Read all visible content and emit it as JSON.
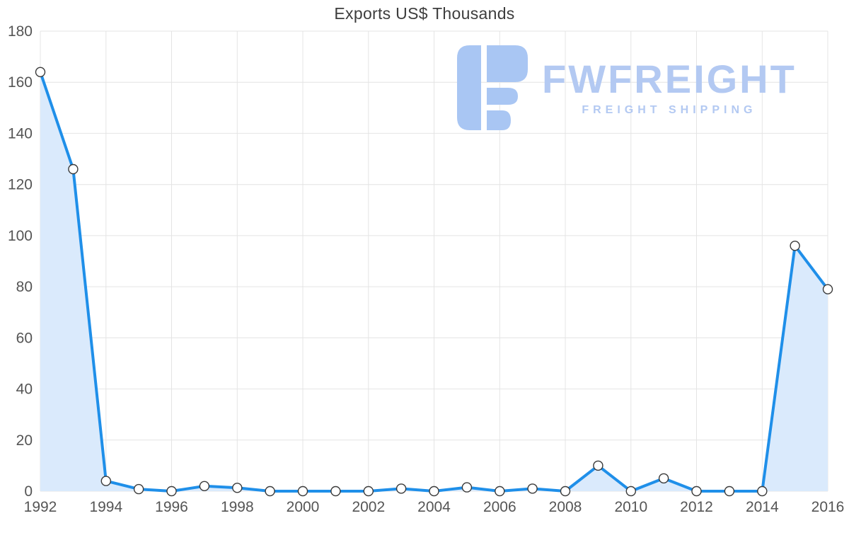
{
  "title": "Exports US$ Thousands",
  "watermark": {
    "brand": "FWFREIGHT",
    "tagline": "FREIGHT SHIPPING",
    "color": "#b3c9f2",
    "logo_color": "#a9c6f3"
  },
  "colors": {
    "line": "#1f8fe9",
    "area": "#daeafc",
    "grid": "#e4e4e4",
    "axis_text": "#555555",
    "marker_fill": "#ffffff",
    "marker_stroke": "#3a3a3a",
    "title": "#3d3d3d"
  },
  "chart_data": {
    "type": "area",
    "title": "Exports US$ Thousands",
    "xlabel": "",
    "ylabel": "",
    "x": [
      1992,
      1993,
      1994,
      1995,
      1996,
      1997,
      1998,
      1999,
      2000,
      2001,
      2002,
      2003,
      2004,
      2005,
      2006,
      2007,
      2008,
      2009,
      2010,
      2011,
      2012,
      2013,
      2014,
      2015,
      2016
    ],
    "values": [
      164,
      126,
      4,
      0.8,
      0,
      2,
      1.3,
      0,
      0,
      0,
      0,
      1,
      0,
      1.5,
      0,
      1,
      0,
      10,
      0,
      5,
      0,
      0,
      0,
      96,
      79
    ],
    "xlim": [
      1992,
      2016
    ],
    "ylim": [
      0,
      180
    ],
    "x_ticks": [
      1992,
      1994,
      1996,
      1998,
      2000,
      2002,
      2004,
      2006,
      2008,
      2010,
      2012,
      2014,
      2016
    ],
    "y_ticks": [
      0,
      20,
      40,
      60,
      80,
      100,
      120,
      140,
      160,
      180
    ],
    "grid": true,
    "legend": false,
    "marker": "circle"
  }
}
